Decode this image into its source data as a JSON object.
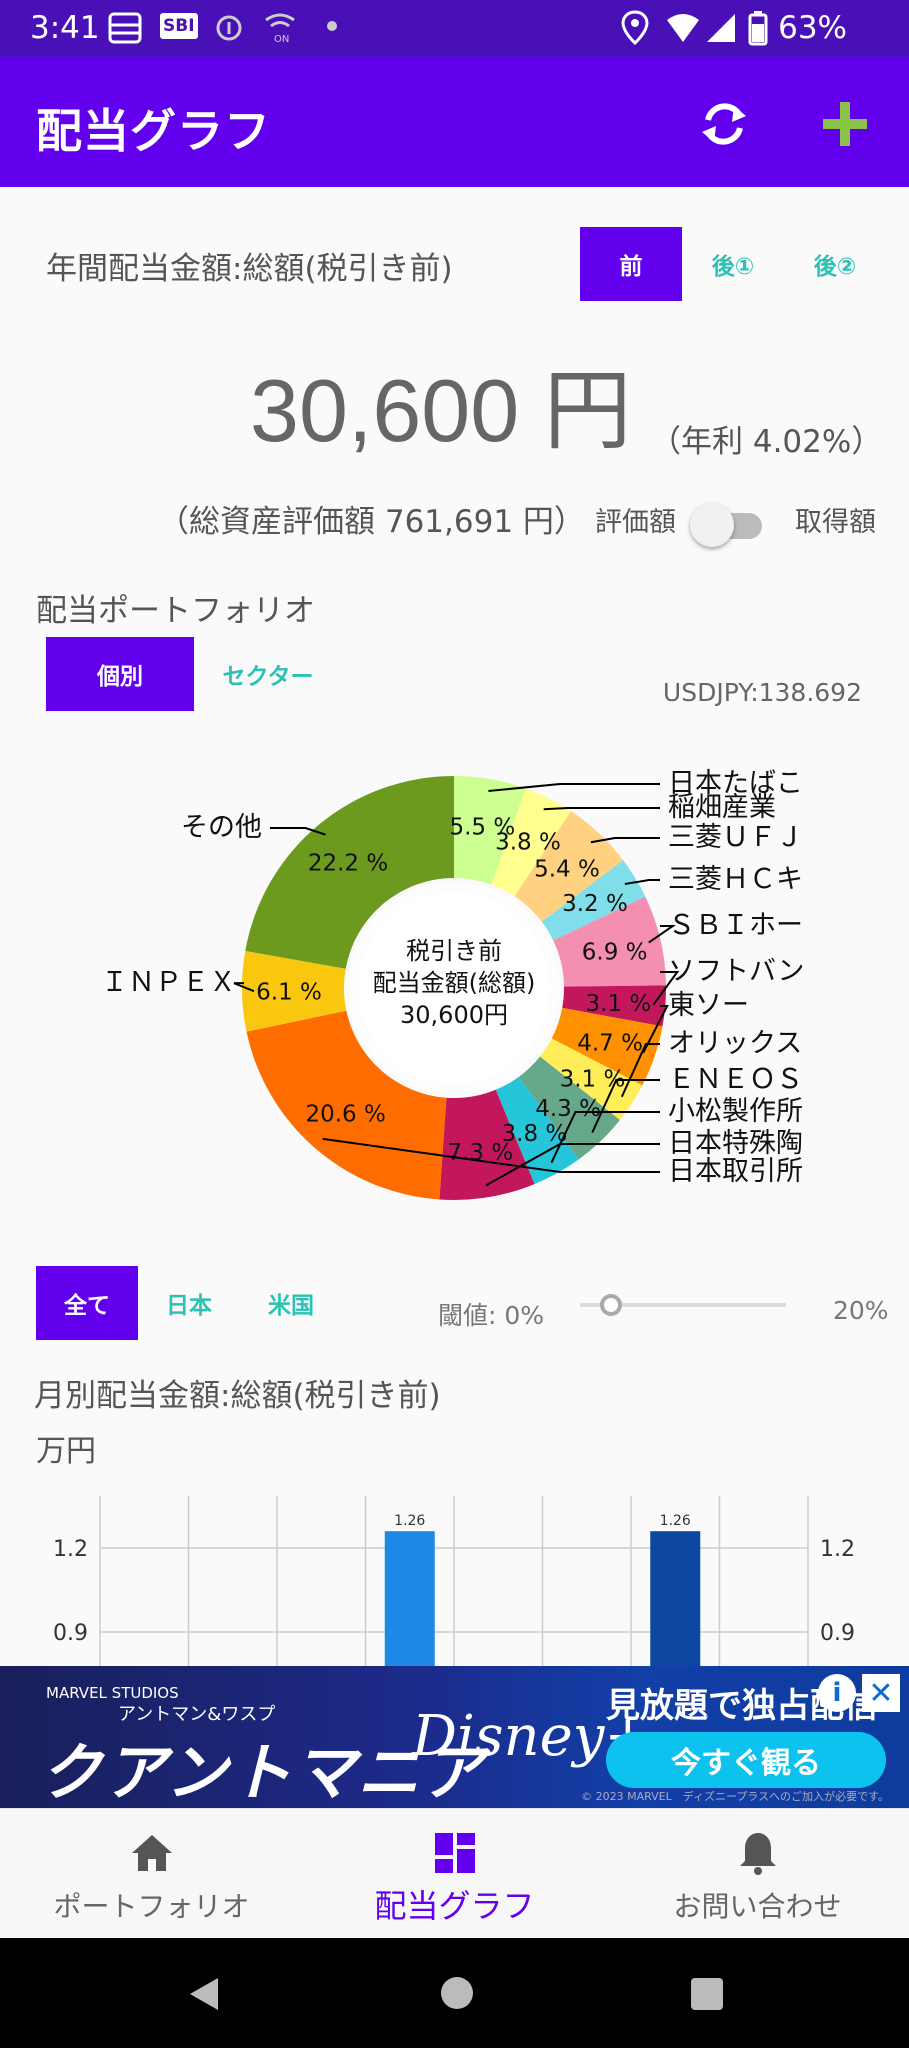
{
  "status_bar": {
    "time": "3:41",
    "battery": "63%",
    "app_badge": "SBI"
  },
  "app_bar": {
    "title": "配当グラフ"
  },
  "dividend_summary": {
    "title": "年間配当金額:総額(税引き前)",
    "tabs": [
      "前",
      "後①",
      "後②"
    ],
    "selected_tab": "前",
    "amount": "30,600 円",
    "yield": "（年利 4.02%）",
    "total_assets": "（総資産評価額 761,691 円）",
    "toggle_left": "評価額",
    "toggle_right": "取得額",
    "toggle_on": false
  },
  "portfolio": {
    "title": "配当ポートフォリオ",
    "tabs": [
      "個別",
      "セクター"
    ],
    "selected_tab": "個別",
    "fx_rate": "USDJPY:138.692"
  },
  "chart_data": [
    {
      "type": "pie",
      "center_lines": [
        "税引き前",
        "配当金額(総額)",
        "30,600円"
      ],
      "slices": [
        {
          "label": "日本たばこ",
          "pct_label": "5.5 %",
          "value": 5.5,
          "color": "#ccff90"
        },
        {
          "label": "稲畑産業",
          "pct_label": "3.8 %",
          "value": 3.8,
          "color": "#ffff8d"
        },
        {
          "label": "三菱ＵＦＪ",
          "pct_label": "5.4 %",
          "value": 5.4,
          "color": "#ffd180"
        },
        {
          "label": "三菱ＨＣキ",
          "pct_label": "3.2 %",
          "value": 3.2,
          "color": "#80deea"
        },
        {
          "label": "ＳＢＩホー",
          "pct_label": "6.9 %",
          "value": 6.9,
          "color": "#f48fb1"
        },
        {
          "label": "ソフトバン",
          "pct_label": "3.1 %",
          "value": 3.1,
          "color": "#c2185b"
        },
        {
          "label": "東ソー",
          "pct_label": "4.7 %",
          "value": 4.7,
          "color": "#ff9100"
        },
        {
          "label": "オリックス",
          "pct_label": "3.1 %",
          "value": 3.1,
          "color": "#ffee58"
        },
        {
          "label": "ＥＮＥＯＳ",
          "pct_label": "4.3 %",
          "value": 4.3,
          "color": "#66a88a"
        },
        {
          "label": "小松製作所",
          "pct_label": "3.8 %",
          "value": 3.8,
          "color": "#26c6da"
        },
        {
          "label": "日本特殊陶",
          "pct_label": "7.3 %",
          "value": 7.3,
          "color": "#c2185b"
        },
        {
          "label": "日本取引所",
          "pct_label": "20.6 %",
          "value": 20.6,
          "color": "#ff6d00"
        },
        {
          "label": "ＩＮＰＥＸ",
          "pct_label": "6.1 %",
          "value": 6.1,
          "color": "#f9c80e"
        },
        {
          "label": "その他",
          "pct_label": "22.2 %",
          "value": 22.2,
          "color": "#6b9a1e"
        }
      ]
    },
    {
      "type": "bar",
      "title": "月別配当金額:総額(税引き前)",
      "ylabel": "万円",
      "yticks": [
        "1.2",
        "0.9"
      ],
      "bars": [
        {
          "slot": 3,
          "value": 1.26,
          "label": "1.26",
          "color": "#1e88e5"
        },
        {
          "slot": 6,
          "value": 1.26,
          "label": "1.26",
          "color": "#0d47a1"
        }
      ]
    }
  ],
  "filter": {
    "tabs": [
      "全て",
      "日本",
      "米国"
    ],
    "selected_tab": "全て",
    "threshold_label": "閾値: 0%",
    "threshold_value": 0,
    "threshold_max": "20%"
  },
  "monthly": {
    "title": "月別配当金額:総額(税引き前)",
    "unit": "万円"
  },
  "ad": {
    "brand": "MARVEL STUDIOS",
    "movie_kicker": "アントマン&ワスプ",
    "movie_title": "クアントマニア",
    "service": "Disney+",
    "headline": "見放題で独占配信",
    "cta": "今すぐ観る",
    "copyright": "© 2023 MARVEL　ディズニープラスへのご加入が必要です。"
  },
  "bottom_nav": [
    {
      "label": "ポートフォリオ",
      "icon": "home-icon"
    },
    {
      "label": "配当グラフ",
      "icon": "dashboard-icon",
      "active": true
    },
    {
      "label": "お問い合わせ",
      "icon": "bell-icon"
    }
  ]
}
